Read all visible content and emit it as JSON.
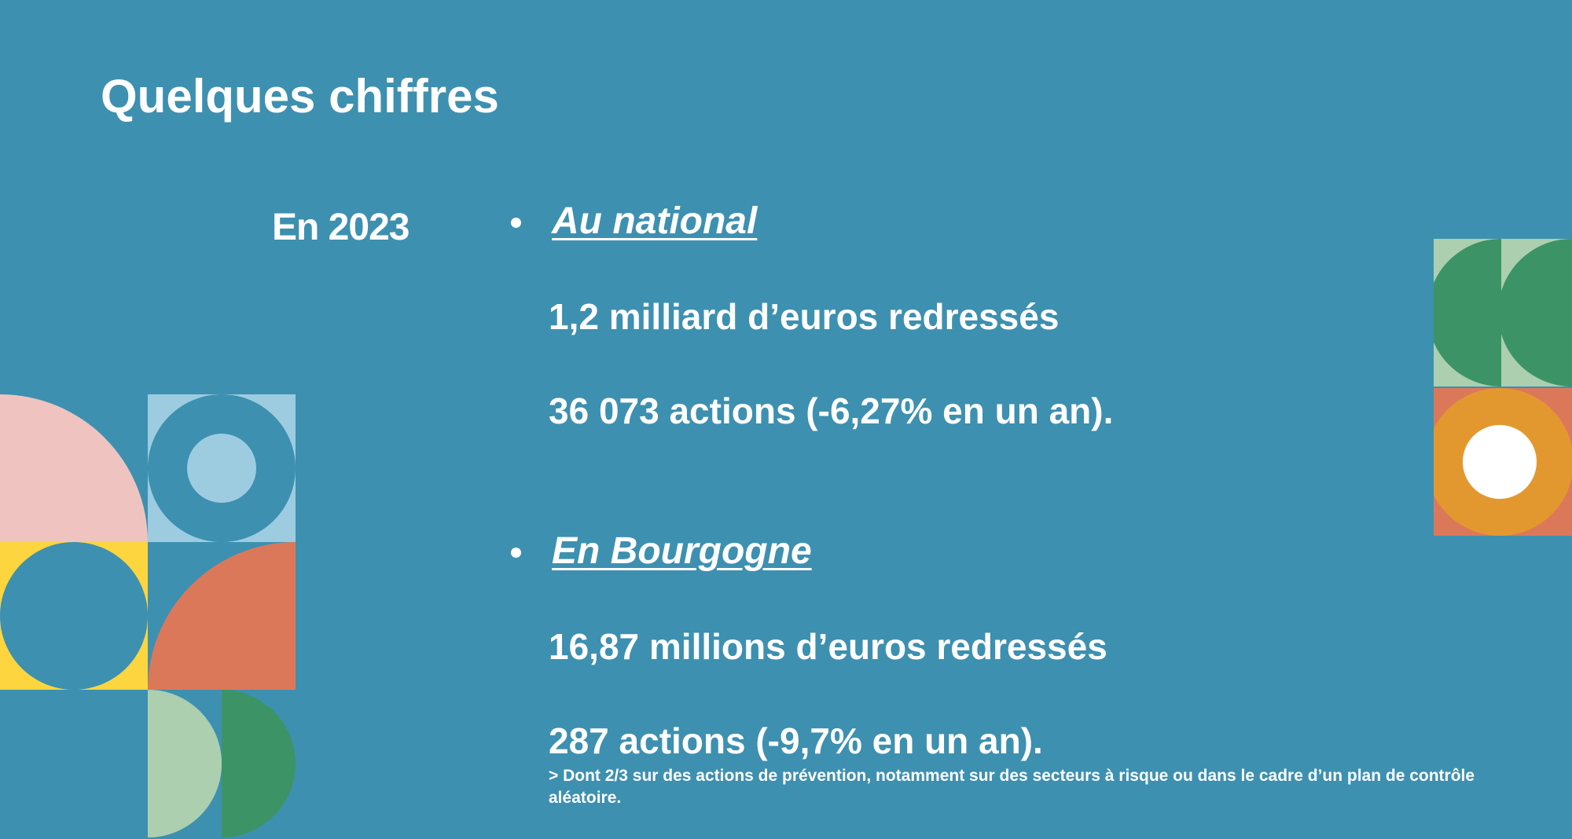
{
  "slide": {
    "title": "Quelques chiffres",
    "year_label": "En 2023",
    "sections": [
      {
        "heading": "Au national",
        "stats": [
          "1,2 milliard d’euros redressés",
          "36 073 actions (-6,27% en un an)."
        ]
      },
      {
        "heading": "En Bourgogne",
        "stats": [
          "16,87 millions d’euros redressés",
          "287 actions (-9,7% en un an)."
        ],
        "note": "> Dont 2/3 sur des actions de prévention, notamment sur des secteurs à risque ou dans le cadre d’un plan de contrôle aléatoire."
      }
    ]
  },
  "colors": {
    "background": "#3d90b0",
    "pink": "#efc4c0",
    "light_blue": "#9dcce1",
    "yellow": "#fcd53f",
    "coral": "#dc785a",
    "sage": "#abcfaf",
    "green": "#3c9466",
    "orange": "#e3982f",
    "white": "#ffffff"
  }
}
